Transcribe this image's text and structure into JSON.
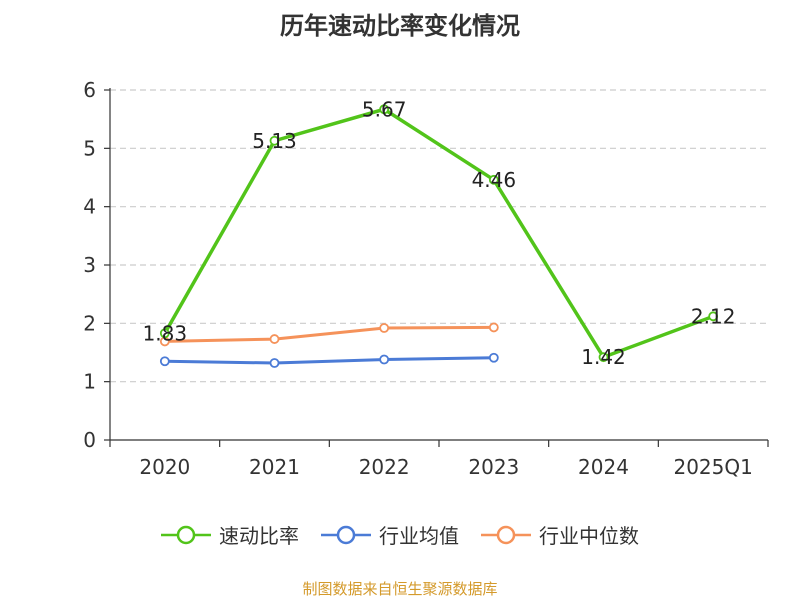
{
  "title": "历年速动比率变化情况",
  "source_note": "制图数据来自恒生聚源数据库",
  "chart_data": {
    "type": "line",
    "categories": [
      "2020",
      "2021",
      "2022",
      "2023",
      "2024",
      "2025Q1"
    ],
    "ylim": [
      0,
      6
    ],
    "yticks": [
      0,
      1,
      2,
      3,
      4,
      5,
      6
    ],
    "grid": true,
    "legend_position": "bottom",
    "series": [
      {
        "name": "速动比率",
        "color": "#52c41a",
        "values": [
          1.83,
          5.13,
          5.67,
          4.46,
          1.42,
          2.12
        ],
        "labels": [
          "1.83",
          "5.13",
          "5.67",
          "4.46",
          "1.42",
          "2.12"
        ]
      },
      {
        "name": "行业均值",
        "color": "#4b7bd6",
        "values": [
          1.35,
          1.32,
          1.38,
          1.41,
          null,
          null
        ]
      },
      {
        "name": "行业中位数",
        "color": "#f5925a",
        "values": [
          1.69,
          1.73,
          1.92,
          1.93,
          null,
          null
        ]
      }
    ]
  }
}
